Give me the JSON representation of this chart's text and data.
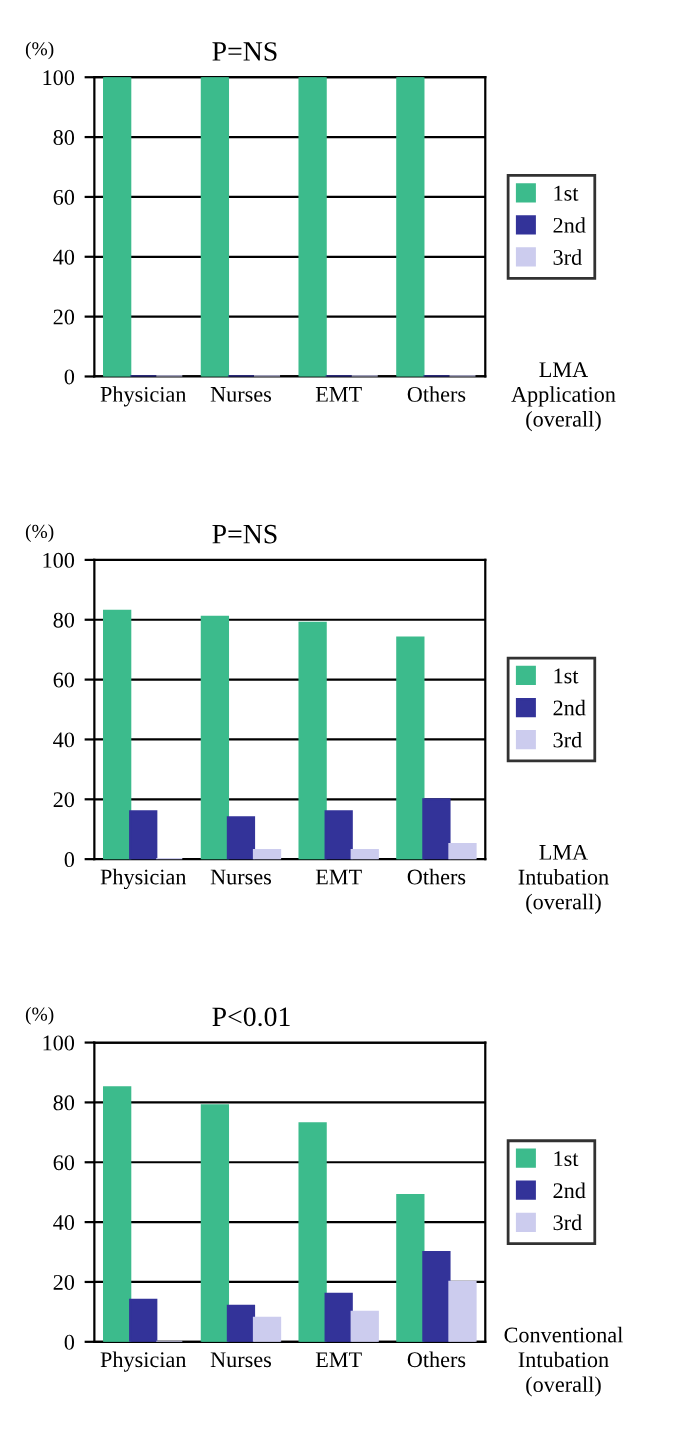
{
  "chart_data": [
    {
      "type": "bar",
      "title": "P=NS",
      "ylabel": "(%)",
      "xlabel": "LMA\nApplication\n(overall)",
      "categories": [
        "Physician",
        "Nurses",
        "EMT",
        "Others"
      ],
      "series": [
        {
          "name": "1st",
          "color": "#3cbb8c",
          "values": [
            100,
            100,
            100,
            100
          ]
        },
        {
          "name": "2nd",
          "color": "#333399",
          "values": [
            0,
            0,
            0,
            0
          ]
        },
        {
          "name": "3rd",
          "color": "#ccccee",
          "values": [
            0,
            0,
            0,
            0
          ]
        }
      ],
      "ylim": [
        0,
        100
      ],
      "yticks": [
        0,
        20,
        40,
        60,
        80,
        100
      ],
      "grid": "y",
      "legend": "right"
    },
    {
      "type": "bar",
      "title": "P=NS",
      "ylabel": "(%)",
      "xlabel": "LMA\nIntubation\n(overall)",
      "categories": [
        "Physician",
        "Nurses",
        "EMT",
        "Others"
      ],
      "series": [
        {
          "name": "1st",
          "color": "#3cbb8c",
          "values": [
            83,
            81,
            79,
            74
          ]
        },
        {
          "name": "2nd",
          "color": "#333399",
          "values": [
            16,
            14,
            16,
            20
          ]
        },
        {
          "name": "3rd",
          "color": "#ccccee",
          "values": [
            0,
            3,
            3,
            5
          ]
        }
      ],
      "ylim": [
        0,
        100
      ],
      "yticks": [
        0,
        20,
        40,
        60,
        80,
        100
      ],
      "grid": "y",
      "legend": "right"
    },
    {
      "type": "bar",
      "title": "P<0.01",
      "ylabel": "(%)",
      "xlabel": "Conventional\nIntubation\n(overall)",
      "categories": [
        "Physician",
        "Nurses",
        "EMT",
        "Others"
      ],
      "series": [
        {
          "name": "1st",
          "color": "#3cbb8c",
          "values": [
            85,
            79,
            73,
            49
          ]
        },
        {
          "name": "2nd",
          "color": "#333399",
          "values": [
            14,
            12,
            16,
            30
          ]
        },
        {
          "name": "3rd",
          "color": "#ccccee",
          "values": [
            0,
            8,
            10,
            20
          ]
        }
      ],
      "ylim": [
        0,
        100
      ],
      "yticks": [
        0,
        20,
        40,
        60,
        80,
        100
      ],
      "grid": "y",
      "legend": "right"
    }
  ]
}
